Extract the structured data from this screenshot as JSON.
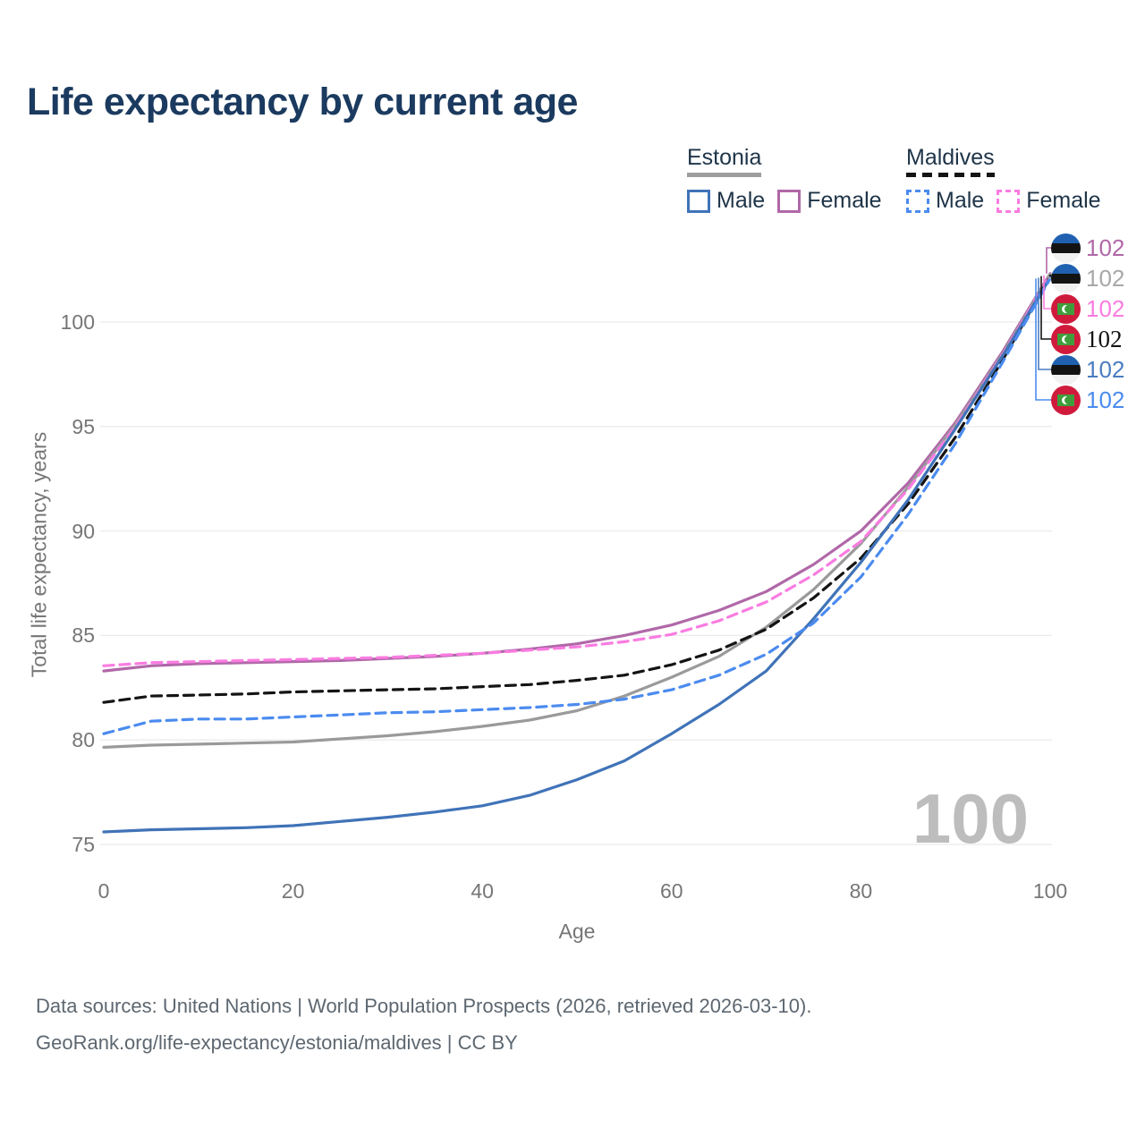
{
  "title": "Life expectancy by current age",
  "legend": {
    "estonia": {
      "label": "Estonia",
      "male": "Male",
      "female": "Female"
    },
    "maldives": {
      "label": "Maldives",
      "male": "Male",
      "female": "Female"
    }
  },
  "watermark": "100",
  "footer": {
    "line1": "Data sources: United Nations | World Population Prospects (2026, retrieved 2026-03-10).",
    "line2": "GeoRank.org/life-expectancy/estonia/maldives | CC BY"
  },
  "colors": {
    "title": "#1b3a5f",
    "legend_text": "#1e3448",
    "tick_text": "#767676",
    "grid": "#ebebeb",
    "watermark": "#bdbdbd",
    "footer_text": "#5d6770",
    "estonia_male": "#4073b8",
    "estonia_female": "#b068a8",
    "estonia_total": "#9a9a9a",
    "maldives_male": "#4b8bef",
    "maldives_female": "#fa7ce1",
    "maldives_total": "#141414",
    "estonia_flag_blue": "#1f61b0",
    "maldives_flag_red": "#d01a3c",
    "maldives_flag_green": "#3f9e3b"
  },
  "right_labels": [
    {
      "id": "estonia-female",
      "flag": "estonia",
      "value": "102",
      "color": "#b068a8",
      "serif": false
    },
    {
      "id": "estonia-total",
      "flag": "estonia",
      "value": "102",
      "color": "#a8a8a8",
      "serif": false
    },
    {
      "id": "maldives-female",
      "flag": "maldives",
      "value": "102",
      "color": "#fa7ce1",
      "serif": false
    },
    {
      "id": "maldives-total",
      "flag": "maldives",
      "value": "102",
      "color": "#141414",
      "serif": true
    },
    {
      "id": "estonia-male",
      "flag": "estonia",
      "value": "102",
      "color": "#4b7cc0",
      "serif": false
    },
    {
      "id": "maldives-male",
      "flag": "maldives",
      "value": "102",
      "color": "#4b8bef",
      "serif": false
    }
  ],
  "chart_data": {
    "type": "line",
    "title": "Life expectancy by current age",
    "xlabel": "Age",
    "ylabel": "Total life expectancy, years",
    "xlim": [
      0,
      100
    ],
    "ylim": [
      75,
      102.5
    ],
    "grid": "horizontal",
    "legend_position": "top-right",
    "xticks": [
      0,
      20,
      40,
      60,
      80,
      100
    ],
    "yticks": [
      75,
      80,
      85,
      90,
      95,
      100
    ],
    "x": [
      0,
      5,
      10,
      15,
      20,
      25,
      30,
      35,
      40,
      45,
      50,
      55,
      60,
      65,
      70,
      75,
      80,
      85,
      90,
      95,
      100
    ],
    "series": [
      {
        "id": "estonia-female",
        "name": "Estonia Female",
        "style": "solid",
        "color": "#b068a8",
        "values": [
          83.3,
          83.55,
          83.65,
          83.7,
          83.75,
          83.8,
          83.9,
          84.0,
          84.15,
          84.35,
          84.6,
          85.0,
          85.5,
          86.2,
          87.1,
          88.4,
          90.0,
          92.3,
          95.2,
          98.6,
          102.32
        ]
      },
      {
        "id": "estonia-total",
        "name": "Estonia Total",
        "style": "solid",
        "color": "#9a9a9a",
        "values": [
          79.65,
          79.75,
          79.8,
          79.85,
          79.9,
          80.05,
          80.2,
          80.4,
          80.65,
          80.95,
          81.4,
          82.1,
          83.0,
          84.0,
          85.4,
          87.2,
          89.4,
          92.1,
          95.1,
          98.5,
          102.28
        ]
      },
      {
        "id": "maldives-female",
        "name": "Maldives Female",
        "style": "dashed",
        "color": "#fa7ce1",
        "values": [
          83.55,
          83.7,
          83.75,
          83.8,
          83.85,
          83.9,
          83.95,
          84.05,
          84.15,
          84.3,
          84.45,
          84.7,
          85.05,
          85.7,
          86.6,
          87.9,
          89.5,
          92.0,
          95.0,
          98.45,
          102.24
        ]
      },
      {
        "id": "maldives-total",
        "name": "Maldives Total",
        "style": "dashed",
        "color": "#141414",
        "values": [
          81.8,
          82.1,
          82.15,
          82.2,
          82.3,
          82.35,
          82.4,
          82.45,
          82.55,
          82.65,
          82.85,
          83.1,
          83.6,
          84.3,
          85.3,
          86.8,
          88.7,
          91.3,
          94.5,
          98.2,
          102.2
        ]
      },
      {
        "id": "estonia-male",
        "name": "Estonia Male",
        "style": "solid",
        "color": "#4073b8",
        "values": [
          75.6,
          75.7,
          75.75,
          75.8,
          75.9,
          76.1,
          76.3,
          76.55,
          76.85,
          77.35,
          78.1,
          79.0,
          80.3,
          81.7,
          83.3,
          85.8,
          88.5,
          91.5,
          94.9,
          98.4,
          102.12
        ]
      },
      {
        "id": "maldives-male",
        "name": "Maldives Male",
        "style": "dashed",
        "color": "#4b8bef",
        "values": [
          80.3,
          80.9,
          81.0,
          81.0,
          81.1,
          81.2,
          81.3,
          81.35,
          81.45,
          81.55,
          81.7,
          81.95,
          82.4,
          83.1,
          84.1,
          85.6,
          87.8,
          90.8,
          94.2,
          98.1,
          102.08
        ]
      }
    ],
    "end_value_labels": [
      "102",
      "102",
      "102",
      "102",
      "102",
      "102"
    ]
  }
}
